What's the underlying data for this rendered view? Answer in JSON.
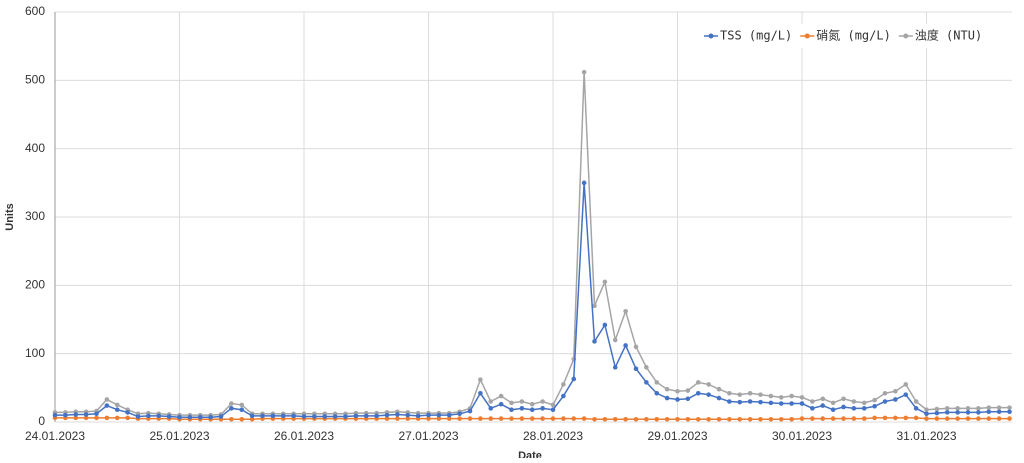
{
  "chart_data": {
    "type": "line",
    "y_label": "Units",
    "x_label": "Date",
    "categories": [
      "24.01.2023",
      null,
      null,
      null,
      null,
      null,
      null,
      null,
      null,
      null,
      null,
      null,
      "25.01.2023",
      null,
      null,
      null,
      null,
      null,
      null,
      null,
      null,
      null,
      null,
      null,
      "26.01.2023",
      null,
      null,
      null,
      null,
      null,
      null,
      null,
      null,
      null,
      null,
      null,
      "27.01.2023",
      null,
      null,
      null,
      null,
      null,
      null,
      null,
      null,
      null,
      null,
      null,
      "28.01.2023",
      null,
      null,
      null,
      null,
      null,
      null,
      null,
      null,
      null,
      null,
      null,
      "29.01.2023",
      null,
      null,
      null,
      null,
      null,
      null,
      null,
      null,
      null,
      null,
      null,
      "30.01.2023",
      null,
      null,
      null,
      null,
      null,
      null,
      null,
      null,
      null,
      null,
      null,
      "31.01.2023",
      null,
      null,
      null,
      null,
      null,
      null,
      null,
      null
    ],
    "series": [
      {
        "name": "TSS (mg/L)",
        "color": "#4472c4",
        "values": [
          10,
          10,
          11,
          11,
          12,
          24,
          18,
          14,
          8,
          9,
          9,
          8,
          7,
          7,
          7,
          7,
          8,
          20,
          18,
          9,
          9,
          9,
          9,
          9,
          8,
          8,
          8,
          8,
          8,
          9,
          9,
          9,
          10,
          11,
          10,
          9,
          10,
          10,
          10,
          12,
          16,
          42,
          20,
          26,
          18,
          20,
          18,
          20,
          18,
          38,
          63,
          350,
          118,
          142,
          80,
          112,
          78,
          58,
          42,
          35,
          33,
          34,
          42,
          40,
          35,
          30,
          29,
          30,
          29,
          28,
          27,
          27,
          27,
          20,
          24,
          18,
          22,
          20,
          20,
          23,
          30,
          33,
          40,
          20,
          12,
          13,
          14,
          14,
          14,
          14,
          15,
          15,
          15
        ]
      },
      {
        "name": "硝氮 (mg/L)",
        "color": "#ed7d31",
        "values": [
          6,
          6,
          6,
          6,
          6,
          6,
          6,
          6,
          5,
          5,
          5,
          5,
          4,
          4,
          4,
          4,
          4,
          4,
          4,
          4,
          5,
          5,
          5,
          5,
          5,
          5,
          5,
          5,
          5,
          5,
          5,
          5,
          5,
          5,
          5,
          5,
          5,
          5,
          5,
          5,
          5,
          5,
          5,
          5,
          5,
          5,
          5,
          5,
          5,
          5,
          5,
          5,
          4,
          4,
          4,
          4,
          4,
          4,
          4,
          4,
          4,
          4,
          4,
          4,
          4,
          4,
          4,
          4,
          4,
          4,
          4,
          4,
          5,
          5,
          5,
          5,
          5,
          5,
          5,
          6,
          6,
          6,
          6,
          6,
          5,
          5,
          5,
          5,
          5,
          5,
          5,
          5,
          5
        ]
      },
      {
        "name": "浊度 (NTU)",
        "color": "#a5a5a5",
        "values": [
          14,
          14,
          15,
          15,
          16,
          33,
          25,
          18,
          12,
          13,
          12,
          11,
          10,
          10,
          10,
          10,
          11,
          27,
          25,
          12,
          12,
          12,
          12,
          12,
          12,
          12,
          12,
          12,
          12,
          13,
          13,
          13,
          14,
          15,
          14,
          13,
          13,
          13,
          13,
          15,
          20,
          62,
          30,
          38,
          28,
          30,
          26,
          30,
          25,
          55,
          92,
          512,
          170,
          205,
          120,
          162,
          110,
          80,
          58,
          48,
          45,
          46,
          58,
          55,
          48,
          42,
          40,
          42,
          40,
          38,
          36,
          38,
          36,
          30,
          34,
          28,
          34,
          30,
          28,
          32,
          42,
          45,
          55,
          30,
          18,
          19,
          20,
          20,
          20,
          20,
          21,
          21,
          21
        ]
      }
    ],
    "ylim": [
      0,
      600
    ],
    "yticks": [
      0,
      100,
      200,
      300,
      400,
      500,
      600
    ],
    "grid": true,
    "legend": "top-right"
  }
}
